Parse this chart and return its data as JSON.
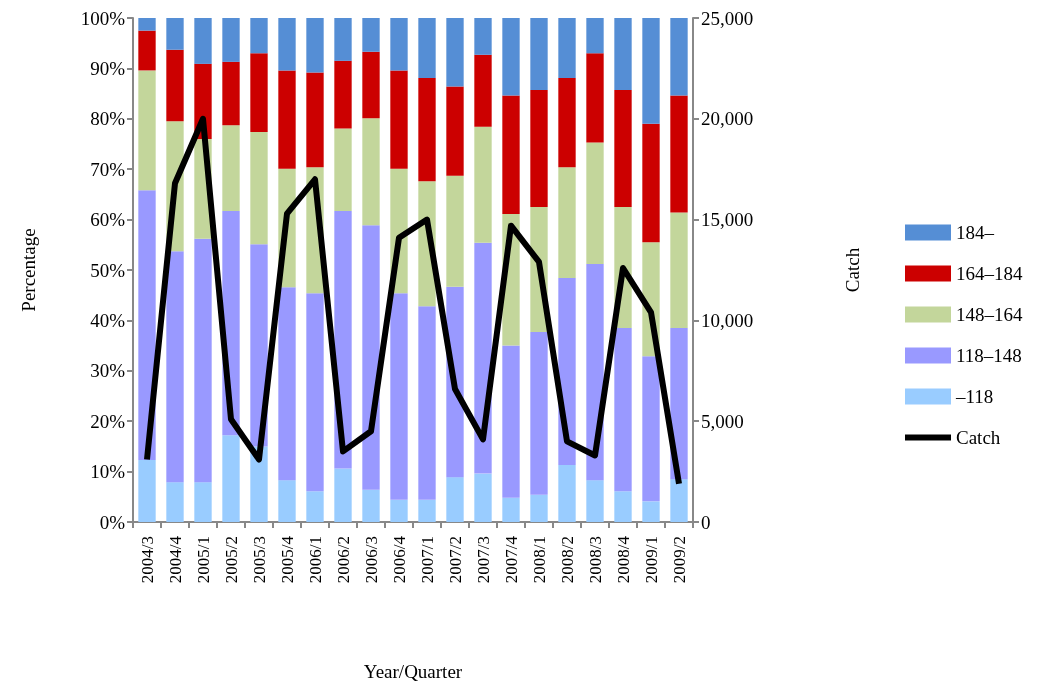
{
  "chart_data": {
    "type": "bar",
    "stacked": true,
    "xlabel": "Year/Quarter",
    "ylabel": "Percentage",
    "y2label": "Catch",
    "categories": [
      "2004/3",
      "2004/4",
      "2005/1",
      "2005/2",
      "2005/3",
      "2005/4",
      "2006/1",
      "2006/2",
      "2006/3",
      "2006/4",
      "2007/1",
      "2007/2",
      "2007/3",
      "2007/4",
      "2008/1",
      "2008/2",
      "2008/3",
      "2008/4",
      "2009/1",
      "2009/2"
    ],
    "series": [
      {
        "name": "–118",
        "color": "#99ccff",
        "values": [
          12.3,
          7.9,
          7.9,
          17.2,
          15.0,
          8.3,
          6.1,
          10.6,
          6.4,
          4.4,
          4.4,
          8.9,
          9.6,
          4.8,
          5.4,
          11.3,
          8.3,
          6.1,
          4.1,
          8.5
        ]
      },
      {
        "name": "118–148",
        "color": "#9999ff",
        "values": [
          53.5,
          45.8,
          48.3,
          44.5,
          40.1,
          38.3,
          39.3,
          51.1,
          52.5,
          41.0,
          38.4,
          37.8,
          45.8,
          30.2,
          32.3,
          37.1,
          42.9,
          32.4,
          28.8,
          30.0
        ]
      },
      {
        "name": "148–164",
        "color": "#c3d69b",
        "values": [
          23.8,
          25.8,
          19.8,
          17.0,
          22.3,
          23.5,
          25.0,
          16.4,
          21.2,
          24.7,
          24.8,
          22.0,
          23.0,
          26.1,
          24.8,
          22.0,
          24.1,
          24.0,
          22.6,
          22.9
        ]
      },
      {
        "name": "164–184",
        "color": "#cc0000",
        "values": [
          7.9,
          14.2,
          14.9,
          12.6,
          15.6,
          19.5,
          18.8,
          13.4,
          13.2,
          19.5,
          20.5,
          17.7,
          14.3,
          23.5,
          23.2,
          17.7,
          17.7,
          23.2,
          23.5,
          23.2
        ]
      },
      {
        "name": "184–",
        "color": "#558ed5",
        "values": [
          2.5,
          6.3,
          9.1,
          8.7,
          7.0,
          10.4,
          10.8,
          8.5,
          6.7,
          10.4,
          11.9,
          13.6,
          7.3,
          15.4,
          14.3,
          11.9,
          7.0,
          14.3,
          21.0,
          15.4
        ]
      },
      {
        "name": "Catch",
        "type": "line",
        "axis": "y2",
        "color": "#000000",
        "values": [
          3100,
          16800,
          20000,
          5100,
          3100,
          15300,
          17000,
          3500,
          4500,
          14100,
          15000,
          6600,
          4100,
          14700,
          12900,
          4000,
          3300,
          12600,
          10400,
          1900
        ]
      }
    ],
    "ylim": [
      0,
      100
    ],
    "yticks": [
      {
        "value": 0,
        "label": "0%"
      },
      {
        "value": 10,
        "label": "10%"
      },
      {
        "value": 20,
        "label": "20%"
      },
      {
        "value": 30,
        "label": "30%"
      },
      {
        "value": 40,
        "label": "40%"
      },
      {
        "value": 50,
        "label": "50%"
      },
      {
        "value": 60,
        "label": "60%"
      },
      {
        "value": 70,
        "label": "70%"
      },
      {
        "value": 80,
        "label": "80%"
      },
      {
        "value": 90,
        "label": "90%"
      },
      {
        "value": 100,
        "label": "100%"
      }
    ],
    "y2lim": [
      0,
      25000
    ],
    "y2ticks": [
      0,
      {
        "value": 5000,
        "label": "5,000"
      },
      {
        "value": 10000,
        "label": "10,000"
      },
      {
        "value": 15000,
        "label": "15,000"
      },
      {
        "value": 20000,
        "label": "20,000"
      },
      {
        "value": 25000,
        "label": "25,000"
      }
    ],
    "legend": "right",
    "grid": false,
    "marker": "none",
    "line_style": "solid"
  }
}
